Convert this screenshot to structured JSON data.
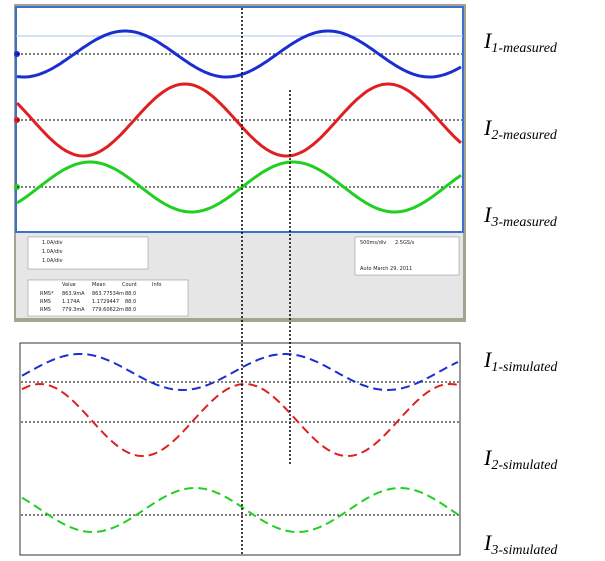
{
  "labels": [
    {
      "letter": "I",
      "sub": "1-measured"
    },
    {
      "letter": "I",
      "sub": "2-measured"
    },
    {
      "letter": "I",
      "sub": "3-measured"
    },
    {
      "letter": "I",
      "sub": "1-simulated"
    },
    {
      "letter": "I",
      "sub": "2-simulated"
    },
    {
      "letter": "I",
      "sub": "3-simulated"
    }
  ],
  "scope": {
    "channels": [
      "1.0A/div",
      "1.0A/div",
      "1.0A/div"
    ],
    "table_header": [
      "Value",
      "Mean",
      "Count",
      "Info"
    ],
    "rows": [
      [
        "RMS*",
        "863.9mA",
        "863.77534m",
        "88.0"
      ],
      [
        "RMS",
        "1.174A",
        "1.1729447",
        "88.0"
      ],
      [
        "RMS",
        "779.3mA",
        "779.60622m",
        "88.0"
      ]
    ],
    "timebase": "500ms/div",
    "rate": "2.5GS/s",
    "date": "Auto   March 29, 2011"
  }
}
